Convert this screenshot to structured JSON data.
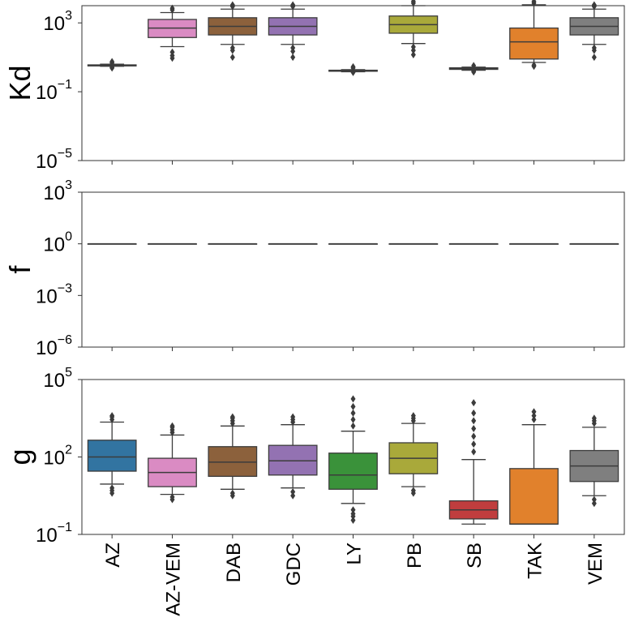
{
  "chart_data": {
    "type": "box",
    "categories": [
      "AZ",
      "AZ-VEM",
      "DAB",
      "GDC",
      "LY",
      "PB",
      "SB",
      "TAK",
      "VEM"
    ],
    "colors": [
      "#3274a1",
      "#da8bc3",
      "#8c613c",
      "#9372b2",
      "#3a923a",
      "#a9a93a",
      "#c03d3e",
      "#e1812c",
      "#7f7f7f"
    ],
    "panels": [
      {
        "ylabel": "Kd",
        "scale": "log",
        "ylim_exp": [
          -5,
          4
        ],
        "ticks": [
          {
            "base": "10",
            "exp": "3",
            "value": 3
          },
          {
            "base": "10",
            "exp": "−1",
            "value": -1
          },
          {
            "base": "10",
            "exp": "−5",
            "value": -5
          }
        ],
        "boxes": [
          {
            "q1": 0.5,
            "median": 0.53,
            "q3": 0.56,
            "wlo": 0.48,
            "whi": 0.6,
            "flo": [
              0.38,
              0.42
            ],
            "fhi": [
              0.68,
              0.75
            ]
          },
          {
            "q1": 2.15,
            "median": 2.7,
            "q3": 3.2,
            "wlo": 1.62,
            "whi": 3.6,
            "flo": [
              1.3,
              1.1,
              0.95
            ],
            "fhi": [
              3.75,
              3.85
            ]
          },
          {
            "q1": 2.3,
            "median": 2.8,
            "q3": 3.3,
            "wlo": 1.75,
            "whi": 3.8,
            "flo": [
              1.55,
              1.4,
              1.0
            ],
            "fhi": [
              3.95,
              4.05
            ]
          },
          {
            "q1": 2.3,
            "median": 2.8,
            "q3": 3.3,
            "wlo": 1.75,
            "whi": 3.8,
            "flo": [
              1.55,
              1.35,
              1.0
            ],
            "fhi": [
              3.95,
              4.05
            ]
          },
          {
            "q1": 0.19,
            "median": 0.22,
            "q3": 0.25,
            "wlo": 0.16,
            "whi": 0.28,
            "flo": [
              0.12
            ],
            "fhi": [
              0.38,
              0.45
            ]
          },
          {
            "q1": 2.4,
            "median": 2.9,
            "q3": 3.4,
            "wlo": 1.8,
            "whi": 4.0,
            "flo": [
              1.6,
              1.4,
              1.15
            ],
            "fhi": [
              4.15,
              4.25
            ]
          },
          {
            "q1": 0.3,
            "median": 0.35,
            "q3": 0.39,
            "wlo": 0.25,
            "whi": 0.43,
            "flo": [
              0.15,
              0.2
            ],
            "fhi": [
              0.52
            ]
          },
          {
            "q1": 0.9,
            "median": 1.9,
            "q3": 2.7,
            "wlo": 0.7,
            "whi": 4.05,
            "flo": [
              0.55,
              0.48
            ],
            "fhi": [
              4.15,
              4.25
            ]
          },
          {
            "q1": 2.3,
            "median": 2.8,
            "q3": 3.3,
            "wlo": 1.75,
            "whi": 3.8,
            "flo": [
              1.55,
              1.4,
              1.0
            ],
            "fhi": [
              3.95,
              4.05
            ]
          }
        ]
      },
      {
        "ylabel": "f",
        "scale": "log",
        "ylim_exp": [
          -6,
          3
        ],
        "ticks": [
          {
            "base": "10",
            "exp": "3",
            "value": 3
          },
          {
            "base": "10",
            "exp": "0",
            "value": 0
          },
          {
            "base": "10",
            "exp": "−3",
            "value": -3
          },
          {
            "base": "10",
            "exp": "−6",
            "value": -6
          }
        ],
        "boxes": [
          {
            "q1": 0,
            "median": 0,
            "q3": 0,
            "wlo": 0,
            "whi": 0,
            "flo": [],
            "fhi": []
          },
          {
            "q1": 0,
            "median": 0,
            "q3": 0,
            "wlo": 0,
            "whi": 0,
            "flo": [],
            "fhi": []
          },
          {
            "q1": 0,
            "median": 0,
            "q3": 0,
            "wlo": 0,
            "whi": 0,
            "flo": [],
            "fhi": []
          },
          {
            "q1": 0,
            "median": 0,
            "q3": 0,
            "wlo": 0,
            "whi": 0,
            "flo": [],
            "fhi": []
          },
          {
            "q1": 0,
            "median": 0,
            "q3": 0,
            "wlo": 0,
            "whi": 0,
            "flo": [],
            "fhi": []
          },
          {
            "q1": 0,
            "median": 0,
            "q3": 0,
            "wlo": 0,
            "whi": 0,
            "flo": [],
            "fhi": []
          },
          {
            "q1": 0,
            "median": 0,
            "q3": 0,
            "wlo": 0,
            "whi": 0,
            "flo": [],
            "fhi": []
          },
          {
            "q1": 0,
            "median": 0,
            "q3": 0,
            "wlo": 0,
            "whi": 0,
            "flo": [],
            "fhi": []
          },
          {
            "q1": 0,
            "median": 0,
            "q3": 0,
            "wlo": 0,
            "whi": 0,
            "flo": [],
            "fhi": []
          }
        ]
      },
      {
        "ylabel": "g",
        "scale": "log",
        "ylim_exp": [
          -1,
          5
        ],
        "ticks": [
          {
            "base": "10",
            "exp": "5",
            "value": 5
          },
          {
            "base": "10",
            "exp": "2",
            "value": 2
          },
          {
            "base": "10",
            "exp": "−1",
            "value": -1
          }
        ],
        "boxes": [
          {
            "q1": 1.45,
            "median": 2.0,
            "q3": 2.65,
            "wlo": 0.95,
            "whi": 3.35,
            "flo": [
              0.8,
              0.7,
              0.6
            ],
            "fhi": [
              3.45,
              3.55,
              3.6
            ]
          },
          {
            "q1": 0.85,
            "median": 1.4,
            "q3": 1.95,
            "wlo": 0.55,
            "whi": 2.85,
            "flo": [
              0.45,
              0.35
            ],
            "fhi": [
              2.95,
              3.05,
              3.15,
              3.2
            ]
          },
          {
            "q1": 1.25,
            "median": 1.8,
            "q3": 2.4,
            "wlo": 0.75,
            "whi": 3.2,
            "flo": [
              0.6,
              0.5
            ],
            "fhi": [
              3.3,
              3.4,
              3.5,
              3.55
            ]
          },
          {
            "q1": 1.3,
            "median": 1.85,
            "q3": 2.45,
            "wlo": 0.8,
            "whi": 3.25,
            "flo": [
              0.65,
              0.5
            ],
            "fhi": [
              3.35,
              3.45,
              3.55
            ]
          },
          {
            "q1": 0.75,
            "median": 1.3,
            "q3": 2.15,
            "wlo": 0.2,
            "whi": 3.0,
            "flo": [
              -0.05,
              -0.2,
              -0.3,
              -0.45
            ],
            "fhi": [
              3.2,
              3.45,
              3.7,
              3.95,
              4.25
            ]
          },
          {
            "q1": 1.35,
            "median": 1.95,
            "q3": 2.55,
            "wlo": 0.85,
            "whi": 3.3,
            "flo": [
              0.7,
              0.6
            ],
            "fhi": [
              3.4,
              3.5,
              3.6
            ]
          },
          {
            "q1": -0.4,
            "median": -0.05,
            "q3": 0.3,
            "wlo": -0.6,
            "whi": 1.9,
            "flo": [],
            "fhi": [
              2.2,
              2.5,
              2.8,
              3.1,
              3.4,
              3.7,
              4.1
            ]
          },
          {
            "q1": -0.6,
            "median": -0.6,
            "q3": 1.55,
            "wlo": -0.6,
            "whi": 3.25,
            "flo": [],
            "fhi": [
              3.45,
              3.6,
              3.75
            ]
          },
          {
            "q1": 1.05,
            "median": 1.65,
            "q3": 2.25,
            "wlo": 0.5,
            "whi": 3.15,
            "flo": [
              0.35,
              0.2
            ],
            "fhi": [
              3.3,
              3.4,
              3.5
            ]
          }
        ]
      }
    ]
  }
}
